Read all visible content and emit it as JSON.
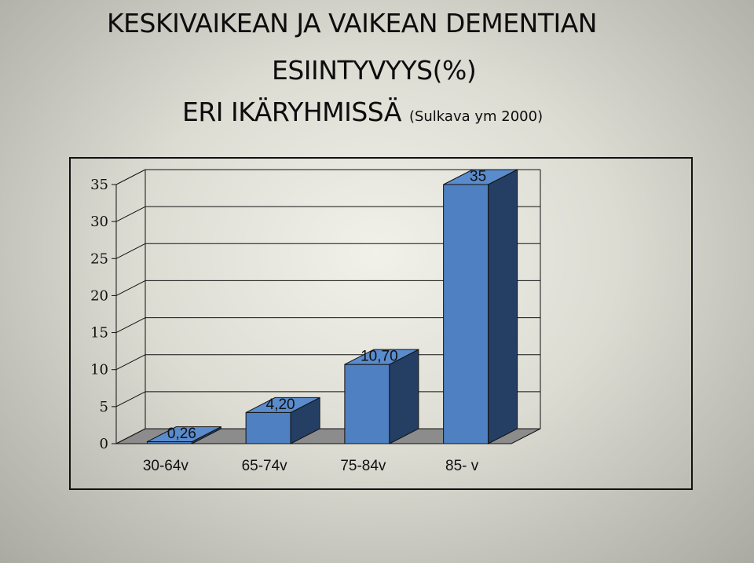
{
  "title": {
    "line1": "KESKIVAIKEAN JA VAIKEAN DEMENTIAN",
    "line2": "ESIINTYVYYS(%)",
    "line3": "ERI IKÄRYHMISSÄ",
    "source": "(Sulkava ym 2000)"
  },
  "chart_data": {
    "type": "bar",
    "categories": [
      "30-64v",
      "65-74v",
      "75-84v",
      "85- v"
    ],
    "values": [
      0.26,
      4.2,
      10.7,
      35
    ],
    "data_labels": [
      "0,26",
      "4,20",
      "10,70",
      "35"
    ],
    "ylim": [
      0,
      35
    ],
    "yticks": [
      "0",
      "5",
      "10",
      "15",
      "20",
      "25",
      "30",
      "35"
    ],
    "grid": true,
    "style": "3d",
    "colors": {
      "front": "#4f80c2",
      "side": "#243f63",
      "top": "#5a8bcc",
      "floor": "#8c8c8c"
    }
  }
}
